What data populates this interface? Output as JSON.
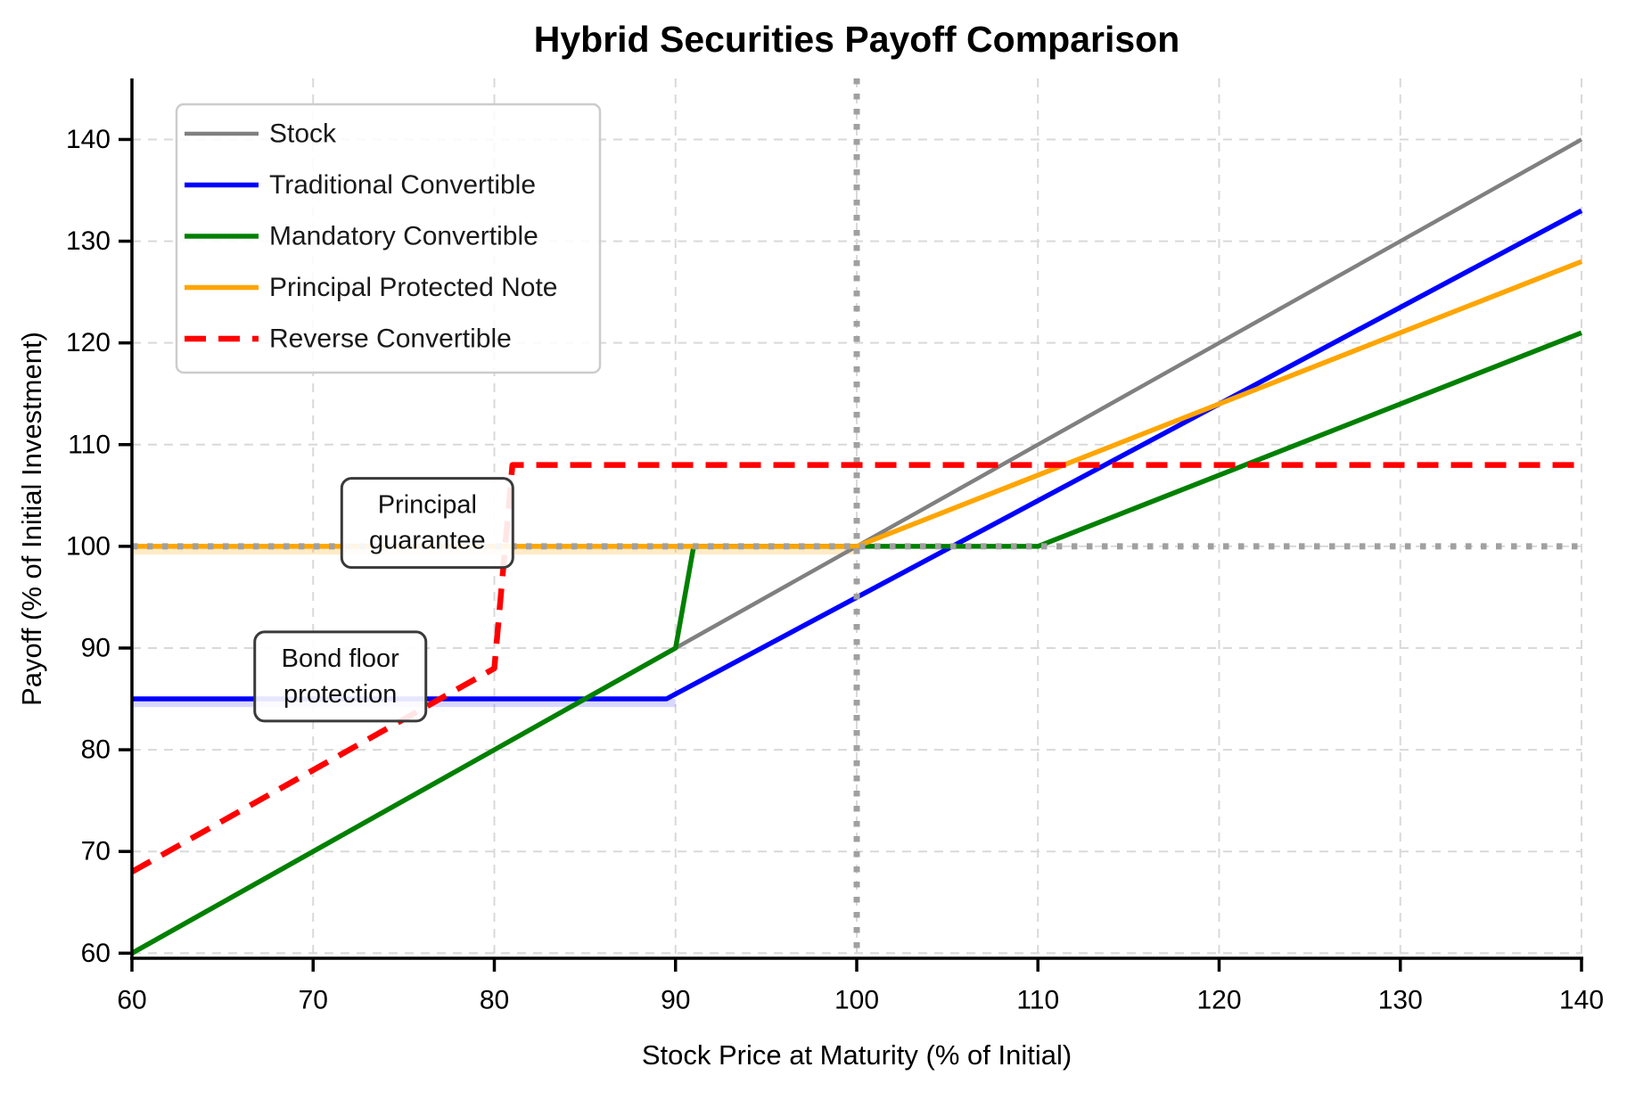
{
  "chart_data": {
    "type": "line",
    "title": "Hybrid Securities Payoff Comparison",
    "xlabel": "Stock Price at Maturity (% of Initial)",
    "ylabel": "Payoff (% of Initial Investment)",
    "xlim": [
      60,
      140
    ],
    "ylim": [
      59.5,
      146
    ],
    "x_ticks": [
      60,
      70,
      80,
      90,
      100,
      110,
      120,
      130,
      140
    ],
    "y_ticks": [
      60,
      70,
      80,
      90,
      100,
      110,
      120,
      130,
      140
    ],
    "grid": true,
    "legend_position": "upper left",
    "series": [
      {
        "name": "Stock",
        "color": "#808080",
        "style": "solid",
        "width": 4.5,
        "z": 1,
        "points": [
          [
            60,
            60
          ],
          [
            140,
            140
          ]
        ]
      },
      {
        "name": "Traditional Convertible",
        "color": "#0000ff",
        "style": "solid",
        "width": 5.5,
        "z": 2,
        "points": [
          [
            60,
            85
          ],
          [
            89.5,
            85
          ],
          [
            140,
            133
          ]
        ]
      },
      {
        "name": "Mandatory Convertible",
        "color": "#008000",
        "style": "solid",
        "width": 5.5,
        "z": 3,
        "points": [
          [
            60,
            60
          ],
          [
            90,
            90
          ],
          [
            91,
            100
          ],
          [
            110,
            100
          ],
          [
            140,
            121
          ]
        ]
      },
      {
        "name": "Principal Protected Note",
        "color": "#ffa500",
        "style": "solid",
        "width": 5.5,
        "z": 4,
        "points": [
          [
            60,
            100
          ],
          [
            100,
            100
          ],
          [
            140,
            128
          ]
        ]
      },
      {
        "name": "Reverse Convertible",
        "color": "#ff0000",
        "style": "dashed",
        "width": 6.5,
        "z": 6,
        "points": [
          [
            60,
            68
          ],
          [
            80,
            88
          ],
          [
            81,
            108
          ],
          [
            140,
            108
          ]
        ]
      }
    ],
    "reference_lines": [
      {
        "orientation": "vertical",
        "value": 100,
        "color": "#a0a0a0",
        "style": "dotted",
        "z": 5
      },
      {
        "orientation": "horizontal",
        "value": 100,
        "color": "#a0a0a0",
        "style": "dotted",
        "z": 5
      }
    ],
    "highlight_bands": [
      {
        "label": "bond-floor",
        "x": [
          60,
          90
        ],
        "y": [
          84.2,
          85
        ],
        "color": "rgba(40,40,255,0.18)"
      },
      {
        "label": "principal-guarantee",
        "x": [
          60,
          100
        ],
        "y": [
          99.2,
          100
        ],
        "color": "rgba(255,165,0,0.22)"
      }
    ],
    "annotations": [
      {
        "lines": [
          "Principal",
          "guarantee"
        ],
        "x": 76.3,
        "y": 102.3
      },
      {
        "lines": [
          "Bond floor",
          "protection"
        ],
        "x": 71.5,
        "y": 87.2
      }
    ],
    "colors": {
      "grid": "#d9d9d9",
      "spine": "#000000",
      "annotation_border": "#3a3a3a",
      "legend_border": "#cccccc",
      "text": "#000000"
    }
  }
}
